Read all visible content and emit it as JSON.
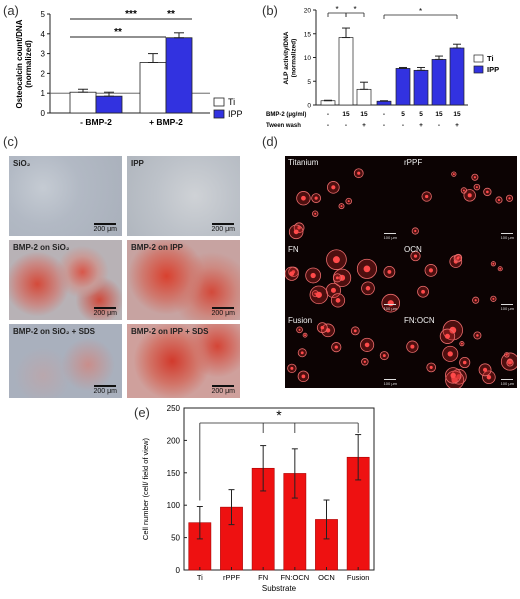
{
  "labels": {
    "a": "(a)",
    "b": "(b)",
    "c": "(c)",
    "d": "(d)",
    "e": "(e)"
  },
  "colors": {
    "ti": "#ffffff",
    "ipp": "#3232e0",
    "red_bar": "#ee1111"
  },
  "panel_a": {
    "ylabel": "Osteocalcin count/DNA\n(normalized)",
    "yticks": [
      "0",
      "1",
      "2",
      "3",
      "4",
      "5"
    ],
    "categories": [
      "- BMP-2",
      "+ BMP-2"
    ],
    "legend": [
      "Ti",
      "IPP"
    ],
    "sig": [
      "***",
      "**",
      "**"
    ]
  },
  "panel_b": {
    "ylabel": "ALP activity/DNA\n(normalized)",
    "yticks": [
      "0",
      "5",
      "10",
      "15",
      "20"
    ],
    "row1_label": "BMP-2  (μg/ml)",
    "row1": [
      "-",
      "15",
      "15",
      "-",
      "5",
      "5",
      "15",
      "15"
    ],
    "row2_label": "Tween wash",
    "row2": [
      "-",
      "-",
      "+",
      "-",
      "-",
      "+",
      "-",
      "+"
    ],
    "legend": [
      "Ti",
      "IPP"
    ],
    "sig": [
      "*",
      "*",
      "*"
    ]
  },
  "panel_c": {
    "tiles": [
      {
        "label": "SiO₂",
        "scale": "200 μm"
      },
      {
        "label": "IPP",
        "scale": "200 μm"
      },
      {
        "label": "BMP-2 on SiO₂",
        "scale": "200 μm"
      },
      {
        "label": "BMP-2 on IPP",
        "scale": "200 μm"
      },
      {
        "label": "BMP-2 on SiO₂ + SDS",
        "scale": "200 μm"
      },
      {
        "label": "BMP-2 on IPP + SDS",
        "scale": "200 μm"
      }
    ]
  },
  "panel_d": {
    "tiles": [
      {
        "label": "Titanium",
        "scale": "100 μm"
      },
      {
        "label": "rPPF",
        "scale": "100 μm"
      },
      {
        "label": "FN",
        "scale": "100 μm"
      },
      {
        "label": "OCN",
        "scale": "100 μm"
      },
      {
        "label": "Fusion",
        "scale": "100 μm"
      },
      {
        "label": "FN:OCN",
        "scale": "100 μm"
      }
    ]
  },
  "panel_e": {
    "ylabel": "Cell number (cell/ field of view)",
    "xlabel": "Substrate",
    "yticks": [
      "0",
      "50",
      "100",
      "150",
      "200",
      "250"
    ],
    "sig": "*"
  },
  "chart_data": [
    {
      "panel": "(a)",
      "type": "bar",
      "categories": [
        "- BMP-2",
        "+ BMP-2"
      ],
      "ylabel": "Osteocalcin count/DNA (normalized)",
      "ylim": [
        0,
        5
      ],
      "reference_line": 1,
      "series": [
        {
          "name": "Ti",
          "values": [
            1.05,
            2.55
          ],
          "errors": [
            0.15,
            0.45
          ]
        },
        {
          "name": "IPP",
          "values": [
            0.85,
            3.8
          ],
          "errors": [
            0.2,
            0.25
          ]
        }
      ],
      "legend_position": "right"
    },
    {
      "panel": "(b)",
      "type": "bar",
      "ylabel": "ALP activity/DNA (normalized)",
      "ylim": [
        0,
        20
      ],
      "groups": [
        {
          "series": "Ti",
          "bmp2": "-",
          "tween": "-",
          "value": 0.9,
          "error": 0.1
        },
        {
          "series": "Ti",
          "bmp2": "15",
          "tween": "-",
          "value": 14.2,
          "error": 2.0
        },
        {
          "series": "Ti",
          "bmp2": "15",
          "tween": "+",
          "value": 3.3,
          "error": 1.5
        },
        {
          "series": "IPP",
          "bmp2": "-",
          "tween": "-",
          "value": 0.8,
          "error": 0.1
        },
        {
          "series": "IPP",
          "bmp2": "5",
          "tween": "-",
          "value": 7.7,
          "error": 0.2
        },
        {
          "series": "IPP",
          "bmp2": "5",
          "tween": "+",
          "value": 7.3,
          "error": 0.6
        },
        {
          "series": "IPP",
          "bmp2": "15",
          "tween": "-",
          "value": 9.6,
          "error": 0.7
        },
        {
          "series": "IPP",
          "bmp2": "15",
          "tween": "+",
          "value": 12.0,
          "error": 0.8
        }
      ],
      "legend_position": "right"
    },
    {
      "panel": "(e)",
      "type": "bar",
      "categories": [
        "Ti",
        "rPPF",
        "FN",
        "FN:OCN",
        "OCN",
        "Fusion"
      ],
      "values": [
        73,
        97,
        157,
        149,
        78,
        174
      ],
      "errors": [
        25,
        27,
        35,
        38,
        30,
        35
      ],
      "xlabel": "Substrate",
      "ylabel": "Cell number (cell/ field of view)",
      "ylim": [
        0,
        250
      ]
    }
  ]
}
